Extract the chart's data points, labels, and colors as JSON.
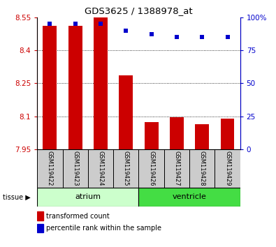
{
  "title": "GDS3625 / 1388978_at",
  "samples": [
    "GSM119422",
    "GSM119423",
    "GSM119424",
    "GSM119425",
    "GSM119426",
    "GSM119427",
    "GSM119428",
    "GSM119429"
  ],
  "transformed_counts": [
    8.51,
    8.51,
    8.55,
    8.285,
    8.075,
    8.095,
    8.065,
    8.09
  ],
  "percentile_ranks": [
    95,
    95,
    95,
    90,
    87,
    85,
    85,
    85
  ],
  "ymin": 7.95,
  "ymax": 8.55,
  "yticks": [
    7.95,
    8.1,
    8.25,
    8.4,
    8.55
  ],
  "right_ytick_vals": [
    0,
    25,
    50,
    75,
    100
  ],
  "bar_color": "#cc0000",
  "dot_color": "#0000cc",
  "bg_color": "#cccccc",
  "left_tick_color": "#cc0000",
  "right_tick_color": "#0000cc",
  "atrium_color": "#ccffcc",
  "ventricle_color": "#44dd44",
  "bar_width": 0.55
}
